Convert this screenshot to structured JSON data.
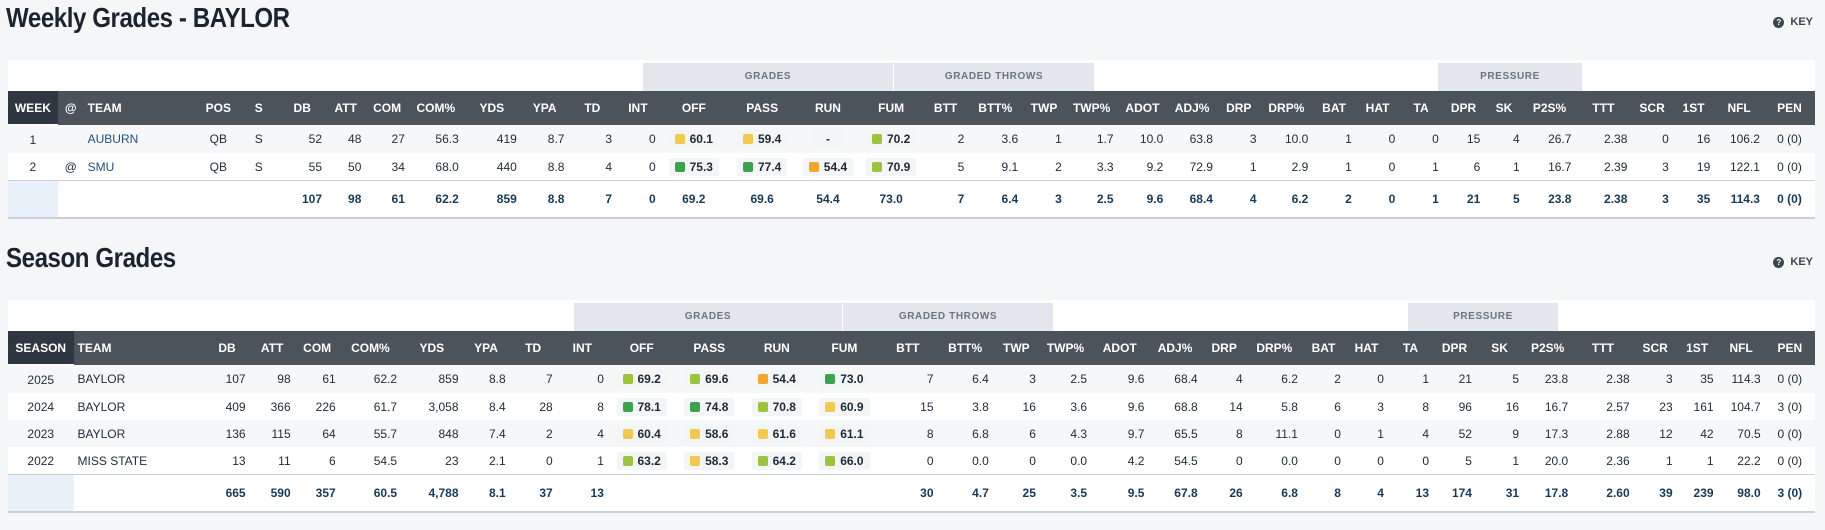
{
  "weekly": {
    "title": "Weekly Grades - BAYLOR",
    "key_label": "KEY",
    "groups": {
      "grades": "GRADES",
      "graded_throws": "GRADED THROWS",
      "pressure": "PRESSURE"
    },
    "columns": [
      "WEEK",
      "@",
      "TEAM",
      "POS",
      "S",
      "DB",
      "ATT",
      "COM",
      "COM%",
      "YDS",
      "YPA",
      "TD",
      "INT",
      "OFF",
      "PASS",
      "RUN",
      "FUM",
      "BTT",
      "BTT%",
      "TWP",
      "TWP%",
      "ADOT",
      "ADJ%",
      "DRP",
      "DRP%",
      "BAT",
      "HAT",
      "TA",
      "DPR",
      "SK",
      "P2S%",
      "TTT",
      "SCR",
      "1ST",
      "NFL",
      "PEN"
    ],
    "rows": [
      {
        "week": "1",
        "at": "",
        "team": "AUBURN",
        "pos": "QB",
        "s": "S",
        "db": "52",
        "att": "48",
        "com": "27",
        "comp": "56.3",
        "yds": "419",
        "ypa": "8.7",
        "td": "3",
        "int": "0",
        "off": "60.1",
        "off_c": "g-yellow",
        "pass": "59.4",
        "pass_c": "g-yellow",
        "run": "-",
        "run_c": "",
        "fum": "70.2",
        "fum_c": "g-lime",
        "btt": "2",
        "bttp": "3.6",
        "twp": "1",
        "twpp": "1.7",
        "adot": "10.0",
        "adj": "63.8",
        "drp": "3",
        "drpp": "10.0",
        "bat": "1",
        "hat": "0",
        "ta": "0",
        "dpr": "15",
        "sk": "4",
        "p2s": "26.7",
        "ttt": "2.38",
        "scr": "0",
        "first": "16",
        "nfl": "106.2",
        "pen": "0 (0)"
      },
      {
        "week": "2",
        "at": "@",
        "team": "SMU",
        "pos": "QB",
        "s": "S",
        "db": "55",
        "att": "50",
        "com": "34",
        "comp": "68.0",
        "yds": "440",
        "ypa": "8.8",
        "td": "4",
        "int": "0",
        "off": "75.3",
        "off_c": "g-green",
        "pass": "77.4",
        "pass_c": "g-green",
        "run": "54.4",
        "run_c": "g-orange",
        "fum": "70.9",
        "fum_c": "g-lime",
        "btt": "5",
        "bttp": "9.1",
        "twp": "2",
        "twpp": "3.3",
        "adot": "9.2",
        "adj": "72.9",
        "drp": "1",
        "drpp": "2.9",
        "bat": "1",
        "hat": "0",
        "ta": "1",
        "dpr": "6",
        "sk": "1",
        "p2s": "16.7",
        "ttt": "2.39",
        "scr": "3",
        "first": "19",
        "nfl": "122.1",
        "pen": "0 (0)"
      }
    ],
    "total": {
      "db": "107",
      "att": "98",
      "com": "61",
      "comp": "62.2",
      "yds": "859",
      "ypa": "8.8",
      "td": "7",
      "int": "0",
      "off": "69.2",
      "pass": "69.6",
      "run": "54.4",
      "fum": "73.0",
      "btt": "7",
      "bttp": "6.4",
      "twp": "3",
      "twpp": "2.5",
      "adot": "9.6",
      "adj": "68.4",
      "drp": "4",
      "drpp": "6.2",
      "bat": "2",
      "hat": "0",
      "ta": "1",
      "dpr": "21",
      "sk": "5",
      "p2s": "23.8",
      "ttt": "2.38",
      "scr": "3",
      "first": "35",
      "nfl": "114.3",
      "pen": "0 (0)"
    }
  },
  "season": {
    "title": "Season Grades",
    "key_label": "KEY",
    "groups": {
      "grades": "GRADES",
      "graded_throws": "GRADED THROWS",
      "pressure": "PRESSURE"
    },
    "columns": [
      "SEASON",
      "TEAM",
      "DB",
      "ATT",
      "COM",
      "COM%",
      "YDS",
      "YPA",
      "TD",
      "INT",
      "OFF",
      "PASS",
      "RUN",
      "FUM",
      "BTT",
      "BTT%",
      "TWP",
      "TWP%",
      "ADOT",
      "ADJ%",
      "DRP",
      "DRP%",
      "BAT",
      "HAT",
      "TA",
      "DPR",
      "SK",
      "P2S%",
      "TTT",
      "SCR",
      "1ST",
      "NFL",
      "PEN"
    ],
    "rows": [
      {
        "season": "2025",
        "team": "BAYLOR",
        "db": "107",
        "att": "98",
        "com": "61",
        "comp": "62.2",
        "yds": "859",
        "ypa": "8.8",
        "td": "7",
        "int": "0",
        "off": "69.2",
        "off_c": "g-lime",
        "pass": "69.6",
        "pass_c": "g-lime",
        "run": "54.4",
        "run_c": "g-orange",
        "fum": "73.0",
        "fum_c": "g-green",
        "btt": "7",
        "bttp": "6.4",
        "twp": "3",
        "twpp": "2.5",
        "adot": "9.6",
        "adj": "68.4",
        "drp": "4",
        "drpp": "6.2",
        "bat": "2",
        "hat": "0",
        "ta": "1",
        "dpr": "21",
        "sk": "5",
        "p2s": "23.8",
        "ttt": "2.38",
        "scr": "3",
        "first": "35",
        "nfl": "114.3",
        "pen": "0 (0)"
      },
      {
        "season": "2024",
        "team": "BAYLOR",
        "db": "409",
        "att": "366",
        "com": "226",
        "comp": "61.7",
        "yds": "3,058",
        "ypa": "8.4",
        "td": "28",
        "int": "8",
        "off": "78.1",
        "off_c": "g-green",
        "pass": "74.8",
        "pass_c": "g-green",
        "run": "70.8",
        "run_c": "g-lime",
        "fum": "60.9",
        "fum_c": "g-yellow",
        "btt": "15",
        "bttp": "3.8",
        "twp": "16",
        "twpp": "3.6",
        "adot": "9.6",
        "adj": "68.8",
        "drp": "14",
        "drpp": "5.8",
        "bat": "6",
        "hat": "3",
        "ta": "8",
        "dpr": "96",
        "sk": "16",
        "p2s": "16.7",
        "ttt": "2.57",
        "scr": "23",
        "first": "161",
        "nfl": "104.7",
        "pen": "3 (0)"
      },
      {
        "season": "2023",
        "team": "BAYLOR",
        "db": "136",
        "att": "115",
        "com": "64",
        "comp": "55.7",
        "yds": "848",
        "ypa": "7.4",
        "td": "2",
        "int": "4",
        "off": "60.4",
        "off_c": "g-yellow",
        "pass": "58.6",
        "pass_c": "g-yellow",
        "run": "61.6",
        "run_c": "g-yellow",
        "fum": "61.1",
        "fum_c": "g-yellow",
        "btt": "8",
        "bttp": "6.8",
        "twp": "6",
        "twpp": "4.3",
        "adot": "9.7",
        "adj": "65.5",
        "drp": "8",
        "drpp": "11.1",
        "bat": "0",
        "hat": "1",
        "ta": "4",
        "dpr": "52",
        "sk": "9",
        "p2s": "17.3",
        "ttt": "2.88",
        "scr": "12",
        "first": "42",
        "nfl": "70.5",
        "pen": "0 (0)"
      },
      {
        "season": "2022",
        "team": "MISS STATE",
        "db": "13",
        "att": "11",
        "com": "6",
        "comp": "54.5",
        "yds": "23",
        "ypa": "2.1",
        "td": "0",
        "int": "1",
        "off": "63.2",
        "off_c": "g-lime",
        "pass": "58.3",
        "pass_c": "g-yellow",
        "run": "64.2",
        "run_c": "g-lime",
        "fum": "66.0",
        "fum_c": "g-lime",
        "btt": "0",
        "bttp": "0.0",
        "twp": "0",
        "twpp": "0.0",
        "adot": "4.2",
        "adj": "54.5",
        "drp": "0",
        "drpp": "0.0",
        "bat": "0",
        "hat": "0",
        "ta": "0",
        "dpr": "5",
        "sk": "1",
        "p2s": "20.0",
        "ttt": "2.36",
        "scr": "1",
        "first": "1",
        "nfl": "22.2",
        "pen": "0 (0)"
      }
    ],
    "total": {
      "db": "665",
      "att": "590",
      "com": "357",
      "comp": "60.5",
      "yds": "4,788",
      "ypa": "8.1",
      "td": "37",
      "int": "13",
      "btt": "30",
      "bttp": "4.7",
      "twp": "25",
      "twpp": "3.5",
      "adot": "9.5",
      "adj": "67.8",
      "drp": "26",
      "drpp": "6.8",
      "bat": "8",
      "hat": "4",
      "ta": "13",
      "dpr": "174",
      "sk": "31",
      "p2s": "17.8",
      "ttt": "2.60",
      "scr": "39",
      "first": "239",
      "nfl": "98.0",
      "pen": "3 (0)"
    }
  }
}
